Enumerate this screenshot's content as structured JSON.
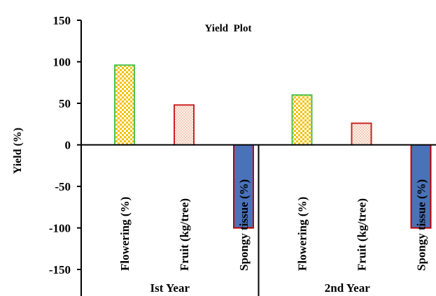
{
  "chart_data": {
    "type": "bar",
    "title": "Yield  Plot",
    "ylabel": "Yield (%)",
    "xlabel": "",
    "ylim": [
      -150,
      150
    ],
    "yticks": [
      150,
      100,
      50,
      0,
      -50,
      -100,
      -150
    ],
    "grid": false,
    "groups": [
      {
        "name": "Ist Year",
        "bars": [
          {
            "label": "Flowering (%)",
            "value": 96
          },
          {
            "label": "Fruit (kg/tree)",
            "value": 48
          },
          {
            "label": "Spongy tissue (%)",
            "value": -100
          }
        ]
      },
      {
        "name": "2nd Year",
        "bars": [
          {
            "label": "Flowering (%)",
            "value": 60
          },
          {
            "label": "Fruit (kg/tree)",
            "value": 26
          },
          {
            "label": "Spongy tissue (%)",
            "value": -100
          }
        ]
      }
    ],
    "styles": {
      "Flowering (%)": {
        "fill": "#f5c100",
        "stroke": "#4ec24e",
        "pattern": "checker"
      },
      "Fruit (kg/tree)": {
        "fill": "#fbe3d6",
        "stroke": "#cc2222",
        "pattern": "dots"
      },
      "Spongy tissue (%)": {
        "fill": "#4a72b8",
        "stroke": "#c00000",
        "pattern": "solid"
      }
    }
  }
}
